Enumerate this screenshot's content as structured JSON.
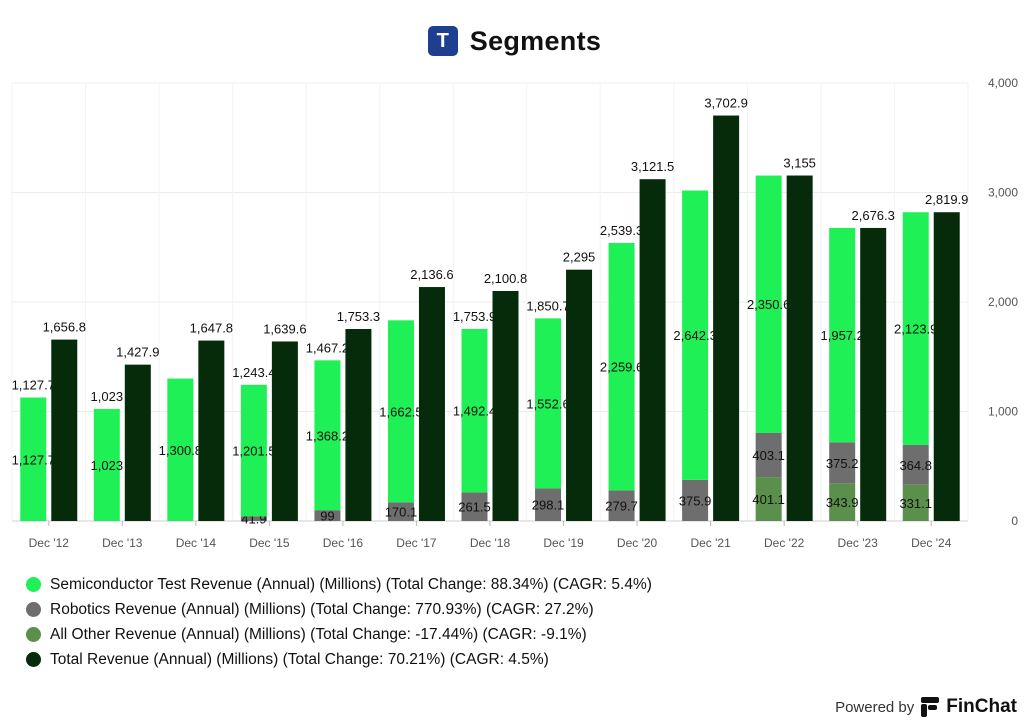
{
  "header": {
    "logo_letter": "T",
    "title": "Segments"
  },
  "chart_data": {
    "type": "bar",
    "title": "Segments",
    "categories": [
      "Dec '12",
      "Dec '13",
      "Dec '14",
      "Dec '15",
      "Dec '16",
      "Dec '17",
      "Dec '18",
      "Dec '19",
      "Dec '20",
      "Dec '21",
      "Dec '22",
      "Dec '23",
      "Dec '24"
    ],
    "ylim": [
      0,
      4000
    ],
    "yticks": [
      {
        "value": 0,
        "label": "0"
      },
      {
        "value": 1000,
        "label": "1,000"
      },
      {
        "value": 2000,
        "label": "2,000"
      },
      {
        "value": 3000,
        "label": "3,000"
      },
      {
        "value": 4000,
        "label": "4,000"
      }
    ],
    "y_axis_position": "right",
    "grid": true,
    "series": [
      {
        "name": "Semiconductor Test Revenue",
        "color": "#1ff055",
        "values": [
          1127.7,
          1023,
          1300.8,
          1201.5,
          1368.2,
          1662.5,
          1492.4,
          1552.6,
          2259.6,
          2642.3,
          2350.6,
          1957.2,
          2123.9
        ]
      },
      {
        "name": "Robotics Revenue",
        "color": "#6e6e6e",
        "values": [
          null,
          null,
          null,
          41.9,
          99,
          170.1,
          261.5,
          298.1,
          279.7,
          375.9,
          403.1,
          375.2,
          364.8
        ]
      },
      {
        "name": "All Other Revenue",
        "color": "#5a8f4c",
        "values": [
          null,
          null,
          null,
          null,
          null,
          null,
          null,
          null,
          null,
          null,
          401.1,
          343.9,
          331.1
        ]
      },
      {
        "name": "Total Revenue",
        "color": "#062b0a",
        "values": [
          1656.8,
          1427.9,
          1647.8,
          1639.6,
          1753.3,
          2136.6,
          2100.8,
          2295,
          3121.5,
          3702.9,
          3155,
          2676.3,
          2819.9
        ]
      }
    ],
    "segment_labels": {
      "semiconductor": [
        "1,127.7",
        "1,023",
        "1,300.8",
        "1,201.5",
        "1,368.2",
        "1,662.5",
        "1,492.4",
        "1,552.6",
        "2,259.6",
        "2,642.3",
        "2,350.6",
        "1,957.2",
        "2,123.9"
      ],
      "robotics": [
        "",
        "",
        "",
        "41.9",
        "99",
        "170.1",
        "261.5",
        "298.1",
        "279.7",
        "375.9",
        "403.1",
        "375.2",
        "364.8"
      ],
      "other": [
        "",
        "",
        "",
        "",
        "",
        "",
        "",
        "",
        "",
        "",
        "401.1",
        "343.9",
        "331.1"
      ]
    },
    "stack_top_labels": [
      "1,127.7",
      "1,023",
      "",
      "1,243.4",
      "1,467.2",
      "",
      "1,753.9",
      "1,850.7",
      "2,539.3",
      "",
      "",
      "",
      ""
    ],
    "total_labels": [
      "1,656.8",
      "1,427.9",
      "1,647.8",
      "1,639.6",
      "1,753.3",
      "2,136.6",
      "2,100.8",
      "2,295",
      "3,121.5",
      "3,702.9",
      "3,155",
      "2,676.3",
      "2,819.9"
    ]
  },
  "legend": {
    "items": [
      {
        "label": "Semiconductor Test Revenue (Annual) (Millions) (Total Change: 88.34%) (CAGR: 5.4%)",
        "color": "#1ff055"
      },
      {
        "label": "Robotics Revenue (Annual) (Millions) (Total Change: 770.93%) (CAGR: 27.2%)",
        "color": "#6e6e6e"
      },
      {
        "label": "All Other Revenue (Annual) (Millions) (Total Change: -17.44%) (CAGR: -9.1%)",
        "color": "#5a8f4c"
      },
      {
        "label": "Total Revenue (Annual) (Millions) (Total Change: 70.21%) (CAGR: 4.5%)",
        "color": "#062b0a"
      }
    ]
  },
  "footer": {
    "powered_by": "Powered by",
    "brand": "FinChat"
  }
}
